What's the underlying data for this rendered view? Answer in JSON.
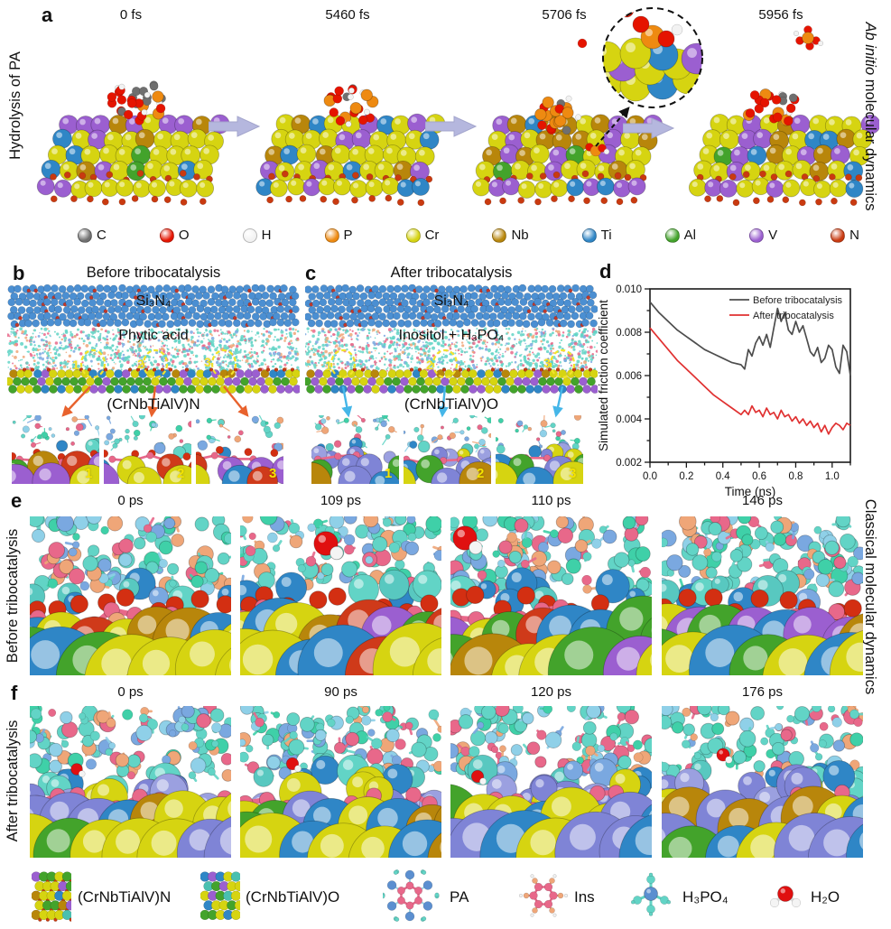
{
  "panels": {
    "a": {
      "id": "a",
      "side_label": "Hydrolysis of PA",
      "frames": [
        {
          "time": "0 fs"
        },
        {
          "time": "5460 fs"
        },
        {
          "time": "5706 fs"
        },
        {
          "time": "5956 fs"
        }
      ],
      "legend": [
        {
          "symbol": "C",
          "color": "#6f6f6f"
        },
        {
          "symbol": "O",
          "color": "#e51400"
        },
        {
          "symbol": "H",
          "color": "#f2f2f2"
        },
        {
          "symbol": "P",
          "color": "#ee8a11"
        },
        {
          "symbol": "Cr",
          "color": "#d6d411"
        },
        {
          "symbol": "Nb",
          "color": "#b8860b"
        },
        {
          "symbol": "Ti",
          "color": "#2f86c6"
        },
        {
          "symbol": "Al",
          "color": "#43a32b"
        },
        {
          "symbol": "V",
          "color": "#9b5fd0"
        },
        {
          "symbol": "N",
          "color": "#c93a10"
        }
      ],
      "right_label": {
        "italic": "Ab initio",
        "rest": " molecular dynamics"
      }
    },
    "b": {
      "id": "b",
      "title": "Before tribocatalysis",
      "top_layer": "Si₃N₄",
      "middle_layer": "Phytic acid",
      "surface_label": "(CrNbTiAlV)N",
      "sites": [
        "1",
        "2",
        "3"
      ],
      "inset_numbers": [
        "1",
        "2",
        "3"
      ]
    },
    "c": {
      "id": "c",
      "title": "After tribocatalysis",
      "top_layer": "Si₃N₄",
      "middle_layer": "Inositol + H₃PO₄",
      "surface_label": "(CrNbTiAlV)O",
      "sites": [
        "1",
        "2",
        "3"
      ],
      "inset_numbers": [
        "1",
        "2",
        "3"
      ]
    },
    "d": {
      "id": "d"
    },
    "e": {
      "id": "e",
      "side_label": "Before tribocatalysis",
      "frames": [
        {
          "time": "0 ps"
        },
        {
          "time": "109 ps"
        },
        {
          "time": "110 ps"
        },
        {
          "time": "146 ps"
        }
      ]
    },
    "f": {
      "id": "f",
      "side_label": "After tribocatalysis",
      "frames": [
        {
          "time": "0 ps"
        },
        {
          "time": "90 ps"
        },
        {
          "time": "120 ps"
        },
        {
          "time": "176 ps"
        }
      ]
    },
    "right_bottom_label": "Classical molecular dynamics"
  },
  "chart_data": {
    "type": "line",
    "title": "",
    "xlabel": "Time (ns)",
    "ylabel": "Simulated friction coefficient",
    "xlim": [
      0,
      1.1
    ],
    "ylim": [
      0.002,
      0.01
    ],
    "xticks": [
      0.0,
      0.2,
      0.4,
      0.6,
      0.8,
      1.0
    ],
    "yticks": [
      0.002,
      0.004,
      0.006,
      0.008,
      0.01
    ],
    "grid": false,
    "legend_position": "top-right",
    "series": [
      {
        "name": "Before tribocatalysis",
        "color": "#4d4d4d",
        "x": [
          0,
          0.05,
          0.1,
          0.15,
          0.2,
          0.25,
          0.3,
          0.35,
          0.4,
          0.45,
          0.5,
          0.52,
          0.54,
          0.56,
          0.58,
          0.6,
          0.62,
          0.64,
          0.66,
          0.68,
          0.7,
          0.72,
          0.74,
          0.76,
          0.78,
          0.8,
          0.82,
          0.84,
          0.86,
          0.88,
          0.9,
          0.92,
          0.94,
          0.96,
          0.98,
          1.0,
          1.02,
          1.04,
          1.06,
          1.08,
          1.1
        ],
        "y": [
          0.0094,
          0.0089,
          0.0085,
          0.0081,
          0.0078,
          0.0075,
          0.0072,
          0.007,
          0.0068,
          0.0066,
          0.0065,
          0.0063,
          0.0072,
          0.0069,
          0.0075,
          0.0078,
          0.0074,
          0.0079,
          0.0073,
          0.0082,
          0.0091,
          0.0085,
          0.0089,
          0.0081,
          0.0079,
          0.0085,
          0.008,
          0.0083,
          0.0077,
          0.0071,
          0.0069,
          0.0073,
          0.0066,
          0.0068,
          0.0074,
          0.0072,
          0.0064,
          0.0061,
          0.0074,
          0.0071,
          0.006
        ]
      },
      {
        "name": "After tribocatalysis",
        "color": "#e03131",
        "x": [
          0,
          0.05,
          0.1,
          0.15,
          0.2,
          0.25,
          0.3,
          0.35,
          0.4,
          0.45,
          0.5,
          0.52,
          0.54,
          0.56,
          0.58,
          0.6,
          0.62,
          0.64,
          0.66,
          0.68,
          0.7,
          0.72,
          0.74,
          0.76,
          0.78,
          0.8,
          0.82,
          0.84,
          0.86,
          0.88,
          0.9,
          0.92,
          0.94,
          0.96,
          0.98,
          1.0,
          1.02,
          1.04,
          1.06,
          1.08,
          1.1
        ],
        "y": [
          0.0082,
          0.0077,
          0.0072,
          0.0067,
          0.0063,
          0.0059,
          0.0055,
          0.0051,
          0.0048,
          0.0045,
          0.0042,
          0.0044,
          0.0042,
          0.0046,
          0.0043,
          0.0044,
          0.0041,
          0.0045,
          0.0042,
          0.0043,
          0.004,
          0.0044,
          0.0041,
          0.0042,
          0.0039,
          0.0041,
          0.0038,
          0.004,
          0.0037,
          0.0039,
          0.0036,
          0.0038,
          0.0034,
          0.0037,
          0.0033,
          0.0036,
          0.0038,
          0.0037,
          0.0035,
          0.0038,
          0.0037
        ]
      }
    ]
  },
  "bottom_legend": {
    "items": [
      {
        "label": "(CrNbTiAlV)N"
      },
      {
        "label": "(CrNbTiAlV)O"
      },
      {
        "label": "PA"
      },
      {
        "label": "Ins"
      },
      {
        "label": "H₃PO₄"
      },
      {
        "label": "H₂O"
      }
    ]
  },
  "colors": {
    "arrow_panel_a": "#b5b7de",
    "arrow_panel_b": "#e8622d",
    "arrow_panel_c": "#45b6e8",
    "site_circle": "#f2e32c",
    "inset_number": "#f5e400",
    "si3n4_blue": "#4b8fd2",
    "si3n4_red": "#c0392b",
    "slate": "#7f84d6",
    "liquid": {
      "cyan": "#62d4c6",
      "pink": "#e8688a",
      "blue": "#7aa8e0",
      "peach": "#efa678"
    }
  }
}
